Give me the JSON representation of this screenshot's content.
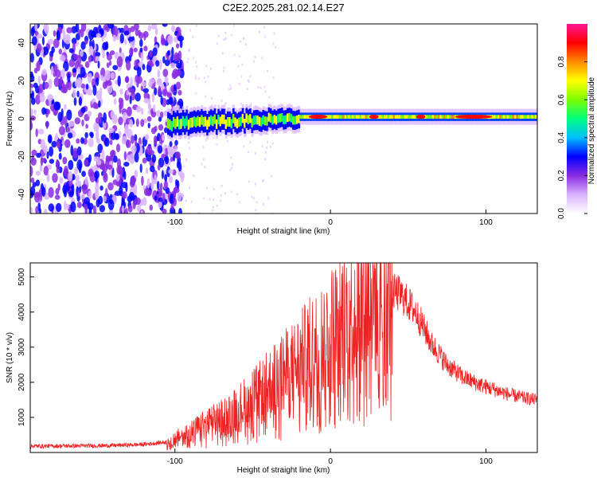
{
  "title": "C2E2.2025.281.02.14.E27",
  "chart_data": [
    {
      "type": "heatmap",
      "title": "C2E2.2025.281.02.14.E27",
      "xlabel": "Height of straight line (km)",
      "ylabel": "Frequency (Hz)",
      "xlim": [
        -193,
        133
      ],
      "ylim": [
        -50,
        50
      ],
      "xticks": [
        -100,
        0,
        100
      ],
      "yticks": [
        -40,
        -20,
        0,
        20,
        40
      ],
      "colorbar": {
        "label": "Normalized spectral amplitude",
        "range": [
          0,
          1
        ],
        "ticks": [
          "0.0",
          "0.2",
          "0.4",
          "0.6",
          "0.8"
        ],
        "colors": [
          "#ffffff",
          "#d9b3ff",
          "#8a2be2",
          "#0000ff",
          "#00bfff",
          "#00ff7f",
          "#7cfc00",
          "#ffff00",
          "#ff8c00",
          "#ff0000",
          "#ff1493"
        ]
      },
      "signal_band": {
        "center_freq_hz": 0,
        "onset_km": -105,
        "peak_amplitude": 0.95,
        "peak_height_km": 92
      },
      "noise_region_km": [
        -193,
        -95
      ]
    },
    {
      "type": "line",
      "xlabel": "Height of straight line (km)",
      "ylabel": "SNR (10 * v/v)",
      "xlim": [
        -193,
        133
      ],
      "ylim": [
        0,
        5400
      ],
      "xticks": [
        -100,
        0,
        100
      ],
      "yticks": [
        1000,
        2000,
        3000,
        4000,
        5000
      ],
      "color": "#ee2222",
      "series": [
        {
          "name": "SNR",
          "x": [
            -193,
            -180,
            -160,
            -140,
            -120,
            -105,
            -95,
            -85,
            -75,
            -65,
            -55,
            -45,
            -35,
            -25,
            -15,
            -5,
            5,
            15,
            25,
            35,
            45,
            55,
            65,
            75,
            85,
            95,
            105,
            115,
            125,
            133
          ],
          "values": [
            180,
            185,
            190,
            200,
            230,
            300,
            500,
            700,
            900,
            1100,
            1400,
            1700,
            2100,
            2400,
            2800,
            3200,
            3700,
            4200,
            4500,
            4650,
            4500,
            4000,
            3100,
            2500,
            2150,
            1950,
            1800,
            1650,
            1550,
            1500
          ]
        }
      ]
    }
  ]
}
